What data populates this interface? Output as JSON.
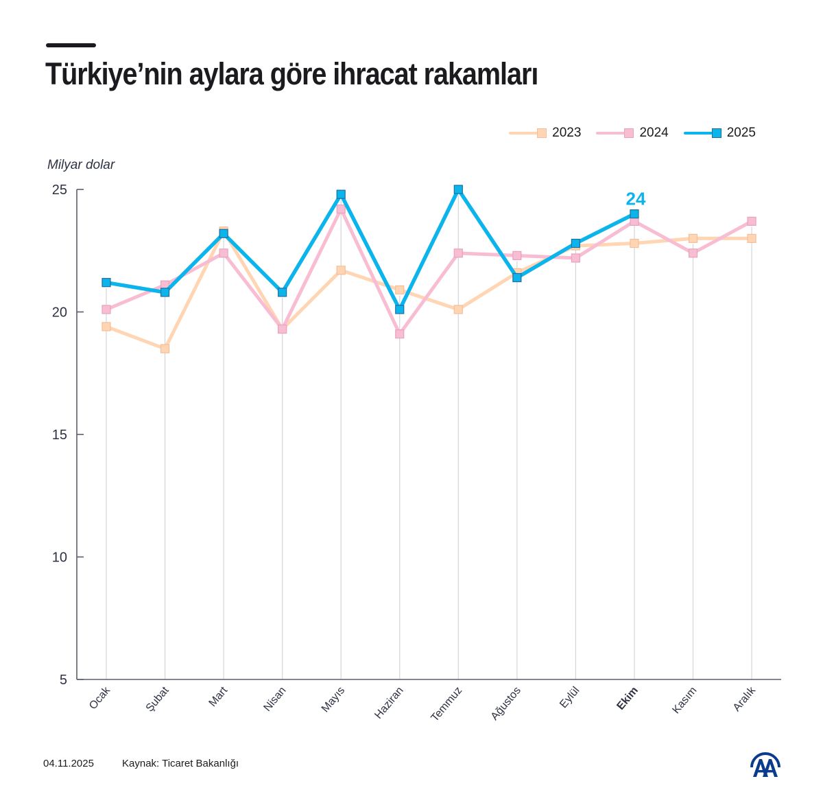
{
  "header": {
    "title": "Türkiye’nin aylara göre ihracat rakamları"
  },
  "legend": [
    {
      "label": "2023",
      "color": "#ffd5b3",
      "marker_border": "#f4be98"
    },
    {
      "label": "2024",
      "color": "#f8bcd3",
      "marker_border": "#e8a3bd"
    },
    {
      "label": "2025",
      "color": "#0cb4ec",
      "marker_border": "#1e6f9e"
    }
  ],
  "axis": {
    "unit_label": "Milyar dolar",
    "y_ticks": [
      "25",
      "20",
      "15",
      "10",
      "5"
    ]
  },
  "highlight": {
    "month": "Ekim",
    "label": "24",
    "color": "#0cb4ec"
  },
  "footer": {
    "date": "04.11.2025",
    "source": "Kaynak: Ticaret Bakanlığı",
    "logo": "aa-logo-icon"
  },
  "chart_data": {
    "type": "line",
    "title": "Türkiye’nin aylara göre ihracat rakamları",
    "xlabel": "",
    "ylabel": "Milyar dolar",
    "ylim": [
      5,
      25
    ],
    "yticks": [
      5,
      10,
      15,
      20,
      25
    ],
    "grid": "vertical gridlines at each month",
    "legend_position": "top-right",
    "categories": [
      "Ocak",
      "Şubat",
      "Mart",
      "Nisan",
      "Mayıs",
      "Haziran",
      "Temmuz",
      "Ağustos",
      "Eylül",
      "Ekim",
      "Kasım",
      "Aralık"
    ],
    "series": [
      {
        "name": "2023",
        "color": "#ffd5b3",
        "values": [
          19.4,
          18.5,
          23.3,
          19.3,
          21.7,
          20.9,
          20.1,
          21.6,
          22.7,
          22.8,
          23.0,
          23.0
        ]
      },
      {
        "name": "2024",
        "color": "#f8bcd3",
        "values": [
          20.1,
          21.1,
          22.4,
          19.3,
          24.2,
          19.1,
          22.4,
          22.3,
          22.2,
          23.7,
          22.4,
          23.7
        ]
      },
      {
        "name": "2025",
        "color": "#0cb4ec",
        "values": [
          21.2,
          20.8,
          23.2,
          20.8,
          24.8,
          20.1,
          25.0,
          21.4,
          22.8,
          24.0,
          null,
          null
        ]
      }
    ],
    "annotations": [
      {
        "category": "Ekim",
        "series": "2025",
        "text": "24"
      }
    ],
    "emphasized_category": "Ekim"
  }
}
